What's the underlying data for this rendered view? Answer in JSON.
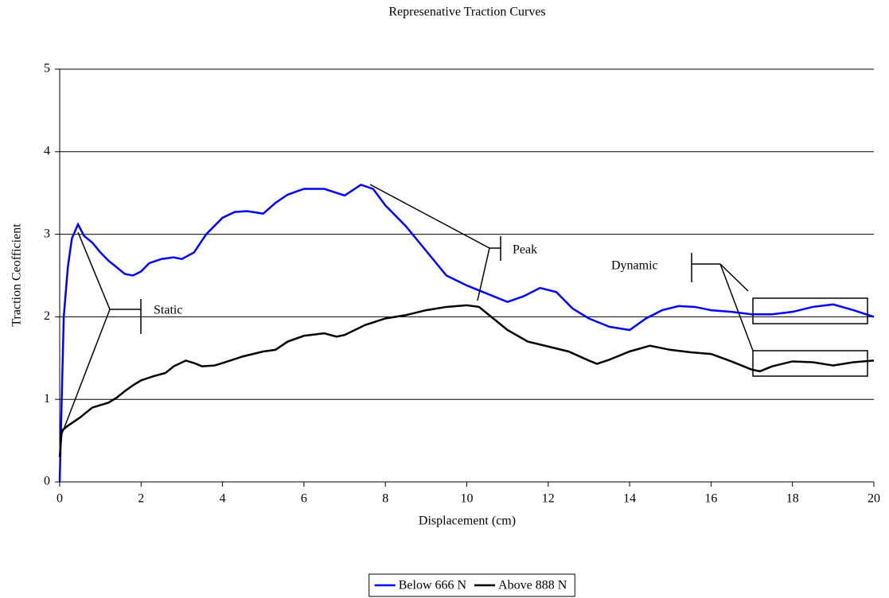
{
  "chart_data": {
    "type": "line",
    "title": "Represenative Traction Curves",
    "x_label": "Displacement (cm)",
    "y_label": "Traction Ceofficient",
    "xlim": [
      0,
      20
    ],
    "xticks": [
      0,
      2,
      4,
      6,
      8,
      10,
      12,
      14,
      16,
      18,
      20
    ],
    "ylim": [
      0,
      5
    ],
    "yticks": [
      0,
      1,
      2,
      3,
      4,
      5
    ],
    "grid": true,
    "legend": "bottom",
    "annotations": [
      "Static",
      "Peak",
      "Dynamic"
    ],
    "series": [
      {
        "name": "Below 666 N",
        "color": "#0000ff",
        "x": [
          0,
          0.05,
          0.1,
          0.2,
          0.3,
          0.45,
          0.6,
          0.8,
          1.0,
          1.2,
          1.4,
          1.6,
          1.8,
          2.0,
          2.2,
          2.5,
          2.8,
          3.0,
          3.3,
          3.6,
          4.0,
          4.3,
          4.6,
          5.0,
          5.3,
          5.6,
          6.0,
          6.5,
          7.0,
          7.4,
          7.7,
          8.0,
          8.5,
          9.0,
          9.5,
          10.0,
          10.5,
          11.0,
          11.4,
          11.8,
          12.2,
          12.6,
          13.0,
          13.5,
          14.0,
          14.4,
          14.8,
          15.2,
          15.6,
          16.0,
          16.5,
          17.0,
          17.5,
          18.0,
          18.5,
          19.0,
          19.5,
          20
        ],
        "values": [
          0,
          1.0,
          2.0,
          2.6,
          2.95,
          3.12,
          2.98,
          2.9,
          2.78,
          2.68,
          2.6,
          2.52,
          2.5,
          2.55,
          2.65,
          2.7,
          2.72,
          2.7,
          2.78,
          3.0,
          3.2,
          3.27,
          3.28,
          3.25,
          3.38,
          3.48,
          3.55,
          3.55,
          3.47,
          3.6,
          3.55,
          3.35,
          3.1,
          2.8,
          2.5,
          2.38,
          2.28,
          2.18,
          2.25,
          2.35,
          2.3,
          2.1,
          1.98,
          1.88,
          1.84,
          1.98,
          2.08,
          2.13,
          2.12,
          2.08,
          2.06,
          2.03,
          2.03,
          2.06,
          2.12,
          2.15,
          2.08,
          2.0
        ]
      },
      {
        "name": "Above 888 N",
        "color": "#000000",
        "x": [
          0,
          0.05,
          0.2,
          0.5,
          0.8,
          1.0,
          1.2,
          1.4,
          1.6,
          1.8,
          2.0,
          2.3,
          2.6,
          2.8,
          3.1,
          3.3,
          3.5,
          3.8,
          4.0,
          4.5,
          5.0,
          5.3,
          5.6,
          6.0,
          6.5,
          6.8,
          7.0,
          7.5,
          8.0,
          8.5,
          9.0,
          9.5,
          10.0,
          10.3,
          10.6,
          11.0,
          11.5,
          12.0,
          12.5,
          13.0,
          13.2,
          13.5,
          14.0,
          14.5,
          15.0,
          15.5,
          16.0,
          16.5,
          17.0,
          17.2,
          17.5,
          18.0,
          18.5,
          19.0,
          19.5,
          20
        ],
        "values": [
          0.3,
          0.62,
          0.68,
          0.78,
          0.9,
          0.93,
          0.96,
          1.02,
          1.1,
          1.17,
          1.23,
          1.28,
          1.32,
          1.4,
          1.47,
          1.44,
          1.4,
          1.41,
          1.44,
          1.52,
          1.58,
          1.6,
          1.7,
          1.77,
          1.8,
          1.76,
          1.78,
          1.9,
          1.98,
          2.02,
          2.08,
          2.12,
          2.14,
          2.12,
          2.0,
          1.84,
          1.7,
          1.64,
          1.58,
          1.47,
          1.43,
          1.48,
          1.58,
          1.65,
          1.6,
          1.57,
          1.55,
          1.46,
          1.36,
          1.34,
          1.4,
          1.46,
          1.45,
          1.41,
          1.45,
          1.47
        ]
      }
    ]
  }
}
